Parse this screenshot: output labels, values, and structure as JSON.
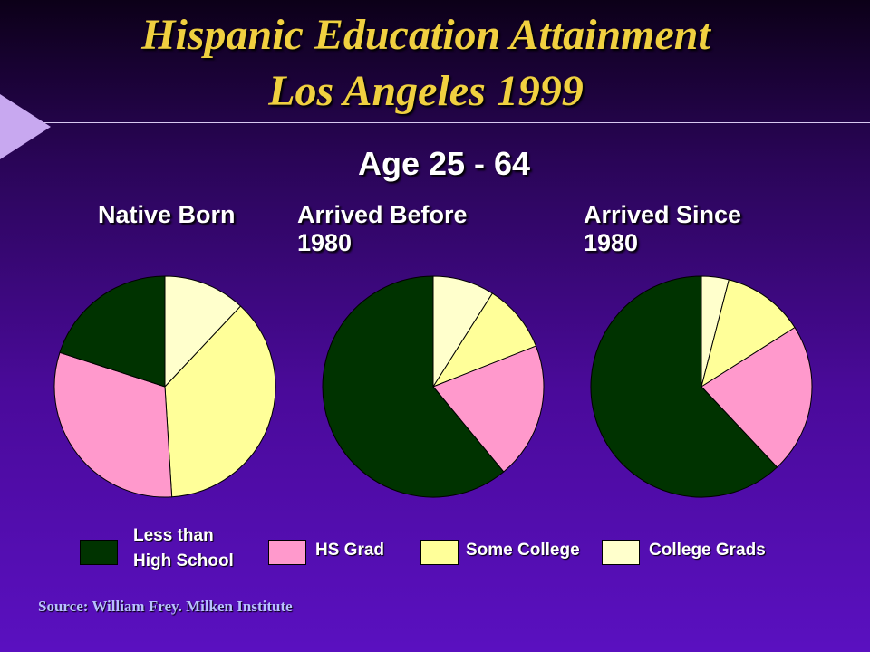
{
  "slide": {
    "title_line1": "Hispanic Education Attainment",
    "title_line2": "Los Angeles 1999",
    "subtitle": "Age 25 - 64",
    "source": "Source: William Frey. Milken Institute"
  },
  "colors": {
    "less_than_high_school": "#003300",
    "hs_grad": "#ff99cc",
    "some_college": "#ffff99",
    "college_grads": "#ffffcc",
    "title": "#f0d040",
    "bullet": "#c8a8f0"
  },
  "chart_data": [
    {
      "type": "pie",
      "title": "Native Born",
      "categories": [
        "College Grads",
        "Some College",
        "HS Grad",
        "Less than High School"
      ],
      "values": [
        12,
        37,
        31,
        20
      ]
    },
    {
      "type": "pie",
      "title": "Arrived Before\n1980",
      "categories": [
        "College Grads",
        "Some College",
        "HS Grad",
        "Less than High School"
      ],
      "values": [
        9,
        10,
        20,
        61
      ]
    },
    {
      "type": "pie",
      "title": "Arrived Since\n1980",
      "categories": [
        "College Grads",
        "Some College",
        "HS Grad",
        "Less than High School"
      ],
      "values": [
        4,
        12,
        22,
        62
      ]
    }
  ],
  "legend": [
    {
      "label": "Less than\nHigh School",
      "color": "#003300"
    },
    {
      "label": "HS Grad",
      "color": "#ff99cc"
    },
    {
      "label": "Some College",
      "color": "#ffff99"
    },
    {
      "label": "College Grads",
      "color": "#ffffcc"
    }
  ]
}
